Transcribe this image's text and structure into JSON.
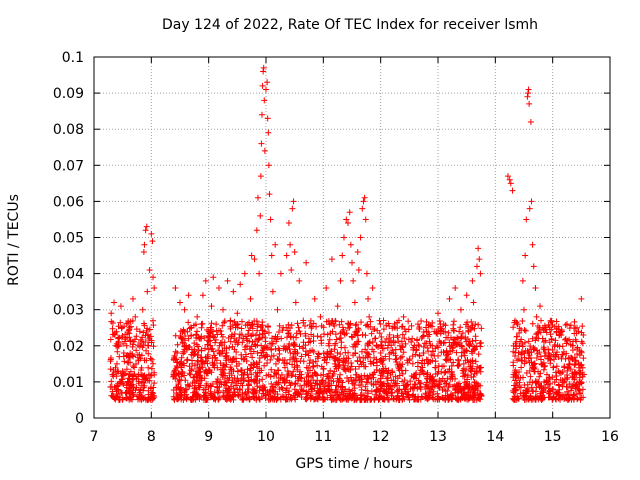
{
  "chart_data": {
    "type": "scatter",
    "title": "Day 124 of 2022, Rate Of TEC Index for receiver lsmh",
    "xlabel": "GPS time / hours",
    "ylabel": "ROTI / TECUs",
    "xlim": [
      7,
      16
    ],
    "ylim": [
      0,
      0.1
    ],
    "xticks": [
      "7",
      "8",
      "9",
      "10",
      "11",
      "12",
      "13",
      "14",
      "15",
      "16"
    ],
    "yticks": [
      "0",
      "0.01",
      "0.02",
      "0.03",
      "0.04",
      "0.05",
      "0.06",
      "0.07",
      "0.08",
      "0.09",
      "0.1"
    ],
    "grid": true,
    "marker": "+",
    "color": "#ff0000",
    "series": [
      {
        "name": "ROTI",
        "points": [
          [
            7.3,
            0.029
          ],
          [
            7.32,
            0.012
          ],
          [
            7.35,
            0.032
          ],
          [
            7.38,
            0.008
          ],
          [
            7.4,
            0.015
          ],
          [
            7.42,
            0.022
          ],
          [
            7.45,
            0.01
          ],
          [
            7.47,
            0.031
          ],
          [
            7.5,
            0.013
          ],
          [
            7.52,
            0.018
          ],
          [
            7.55,
            0.007
          ],
          [
            7.57,
            0.02
          ],
          [
            7.6,
            0.011
          ],
          [
            7.62,
            0.025
          ],
          [
            7.65,
            0.009
          ],
          [
            7.68,
            0.033
          ],
          [
            7.7,
            0.014
          ],
          [
            7.72,
            0.028
          ],
          [
            7.75,
            0.006
          ],
          [
            7.78,
            0.016
          ],
          [
            7.8,
            0.024
          ],
          [
            7.82,
            0.012
          ],
          [
            7.85,
            0.03
          ],
          [
            7.87,
            0.046
          ],
          [
            7.88,
            0.048
          ],
          [
            7.9,
            0.052
          ],
          [
            7.92,
            0.053
          ],
          [
            7.93,
            0.035
          ],
          [
            7.95,
            0.02
          ],
          [
            7.97,
            0.041
          ],
          [
            8.0,
            0.051
          ],
          [
            8.02,
            0.049
          ],
          [
            8.03,
            0.039
          ],
          [
            8.05,
            0.036
          ],
          [
            8.4,
            0.012
          ],
          [
            8.42,
            0.036
          ],
          [
            8.45,
            0.018
          ],
          [
            8.48,
            0.01
          ],
          [
            8.5,
            0.032
          ],
          [
            8.52,
            0.014
          ],
          [
            8.55,
            0.021
          ],
          [
            8.58,
            0.03
          ],
          [
            8.6,
            0.008
          ],
          [
            8.62,
            0.016
          ],
          [
            8.65,
            0.034
          ],
          [
            8.68,
            0.012
          ],
          [
            8.7,
            0.025
          ],
          [
            8.73,
            0.007
          ],
          [
            8.75,
            0.019
          ],
          [
            8.78,
            0.013
          ],
          [
            8.8,
            0.028
          ],
          [
            8.83,
            0.01
          ],
          [
            8.85,
            0.022
          ],
          [
            8.88,
            0.015
          ],
          [
            8.9,
            0.034
          ],
          [
            8.93,
            0.011
          ],
          [
            8.95,
            0.038
          ],
          [
            8.98,
            0.017
          ],
          [
            9.0,
            0.024
          ],
          [
            9.03,
            0.009
          ],
          [
            9.05,
            0.031
          ],
          [
            9.08,
            0.039
          ],
          [
            9.1,
            0.014
          ],
          [
            9.13,
            0.026
          ],
          [
            9.15,
            0.01
          ],
          [
            9.18,
            0.036
          ],
          [
            9.2,
            0.018
          ],
          [
            9.23,
            0.012
          ],
          [
            9.25,
            0.03
          ],
          [
            9.28,
            0.021
          ],
          [
            9.3,
            0.016
          ],
          [
            9.33,
            0.038
          ],
          [
            9.35,
            0.008
          ],
          [
            9.38,
            0.027
          ],
          [
            9.4,
            0.013
          ],
          [
            9.43,
            0.035
          ],
          [
            9.45,
            0.019
          ],
          [
            9.48,
            0.01
          ],
          [
            9.5,
            0.029
          ],
          [
            9.53,
            0.015
          ],
          [
            9.55,
            0.037
          ],
          [
            9.58,
            0.023
          ],
          [
            9.6,
            0.011
          ],
          [
            9.63,
            0.04
          ],
          [
            9.65,
            0.017
          ],
          [
            9.68,
            0.026
          ],
          [
            9.7,
            0.009
          ],
          [
            9.73,
            0.033
          ],
          [
            9.75,
            0.045
          ],
          [
            9.78,
            0.014
          ],
          [
            9.8,
            0.044
          ],
          [
            9.82,
            0.02
          ],
          [
            9.84,
            0.052
          ],
          [
            9.86,
            0.061
          ],
          [
            9.88,
            0.04
          ],
          [
            9.9,
            0.056
          ],
          [
            9.91,
            0.067
          ],
          [
            9.92,
            0.076
          ],
          [
            9.93,
            0.084
          ],
          [
            9.94,
            0.092
          ],
          [
            9.95,
            0.096
          ],
          [
            9.96,
            0.097
          ],
          [
            9.97,
            0.088
          ],
          [
            9.98,
            0.074
          ],
          [
            10.0,
            0.091
          ],
          [
            10.02,
            0.093
          ],
          [
            10.03,
            0.083
          ],
          [
            10.04,
            0.079
          ],
          [
            10.05,
            0.07
          ],
          [
            10.06,
            0.062
          ],
          [
            10.08,
            0.055
          ],
          [
            10.1,
            0.045
          ],
          [
            10.12,
            0.035
          ],
          [
            10.14,
            0.022
          ],
          [
            10.16,
            0.048
          ],
          [
            10.18,
            0.012
          ],
          [
            10.2,
            0.03
          ],
          [
            10.23,
            0.016
          ],
          [
            10.26,
            0.04
          ],
          [
            10.3,
            0.025
          ],
          [
            10.33,
            0.01
          ],
          [
            10.36,
            0.045
          ],
          [
            10.4,
            0.054
          ],
          [
            10.42,
            0.048
          ],
          [
            10.44,
            0.041
          ],
          [
            10.46,
            0.058
          ],
          [
            10.48,
            0.06
          ],
          [
            10.5,
            0.046
          ],
          [
            10.52,
            0.032
          ],
          [
            10.55,
            0.018
          ],
          [
            10.58,
            0.038
          ],
          [
            10.62,
            0.012
          ],
          [
            10.65,
            0.027
          ],
          [
            10.7,
            0.043
          ],
          [
            10.75,
            0.022
          ],
          [
            10.8,
            0.009
          ],
          [
            10.85,
            0.033
          ],
          [
            10.9,
            0.017
          ],
          [
            10.95,
            0.028
          ],
          [
            11.0,
            0.012
          ],
          [
            11.05,
            0.036
          ],
          [
            11.1,
            0.02
          ],
          [
            11.15,
            0.044
          ],
          [
            11.2,
            0.015
          ],
          [
            11.25,
            0.031
          ],
          [
            11.3,
            0.038
          ],
          [
            11.33,
            0.045
          ],
          [
            11.36,
            0.05
          ],
          [
            11.4,
            0.055
          ],
          [
            11.43,
            0.054
          ],
          [
            11.46,
            0.057
          ],
          [
            11.48,
            0.048
          ],
          [
            11.5,
            0.043
          ],
          [
            11.52,
            0.038
          ],
          [
            11.55,
            0.032
          ],
          [
            11.58,
            0.024
          ],
          [
            11.6,
            0.046
          ],
          [
            11.62,
            0.041
          ],
          [
            11.65,
            0.05
          ],
          [
            11.68,
            0.058
          ],
          [
            11.7,
            0.06
          ],
          [
            11.72,
            0.061
          ],
          [
            11.74,
            0.055
          ],
          [
            11.76,
            0.04
          ],
          [
            11.78,
            0.033
          ],
          [
            11.8,
            0.028
          ],
          [
            11.83,
            0.015
          ],
          [
            11.86,
            0.036
          ],
          [
            11.9,
            0.022
          ],
          [
            11.95,
            0.01
          ],
          [
            12.0,
            0.018
          ],
          [
            12.05,
            0.027
          ],
          [
            12.1,
            0.008
          ],
          [
            12.15,
            0.021
          ],
          [
            12.2,
            0.013
          ],
          [
            12.25,
            0.025
          ],
          [
            12.3,
            0.011
          ],
          [
            12.35,
            0.019
          ],
          [
            12.4,
            0.028
          ],
          [
            12.45,
            0.009
          ],
          [
            12.5,
            0.016
          ],
          [
            12.55,
            0.022
          ],
          [
            12.6,
            0.012
          ],
          [
            12.65,
            0.026
          ],
          [
            12.7,
            0.008
          ],
          [
            12.75,
            0.018
          ],
          [
            12.8,
            0.024
          ],
          [
            12.85,
            0.011
          ],
          [
            12.9,
            0.02
          ],
          [
            12.95,
            0.014
          ],
          [
            13.0,
            0.029
          ],
          [
            13.05,
            0.01
          ],
          [
            13.1,
            0.026
          ],
          [
            13.15,
            0.018
          ],
          [
            13.2,
            0.033
          ],
          [
            13.25,
            0.012
          ],
          [
            13.3,
            0.036
          ],
          [
            13.35,
            0.022
          ],
          [
            13.4,
            0.03
          ],
          [
            13.45,
            0.015
          ],
          [
            13.5,
            0.034
          ],
          [
            13.55,
            0.02
          ],
          [
            13.6,
            0.038
          ],
          [
            13.62,
            0.032
          ],
          [
            13.65,
            0.026
          ],
          [
            13.68,
            0.042
          ],
          [
            13.7,
            0.047
          ],
          [
            13.72,
            0.044
          ],
          [
            13.74,
            0.04
          ],
          [
            13.75,
            0.014
          ],
          [
            14.22,
            0.067
          ],
          [
            14.25,
            0.066
          ],
          [
            14.27,
            0.065
          ],
          [
            14.3,
            0.063
          ],
          [
            14.32,
            0.012
          ],
          [
            14.35,
            0.009
          ],
          [
            14.38,
            0.016
          ],
          [
            14.4,
            0.011
          ],
          [
            14.42,
            0.02
          ],
          [
            14.45,
            0.014
          ],
          [
            14.48,
            0.038
          ],
          [
            14.5,
            0.03
          ],
          [
            14.52,
            0.045
          ],
          [
            14.54,
            0.055
          ],
          [
            14.56,
            0.089
          ],
          [
            14.57,
            0.09
          ],
          [
            14.58,
            0.091
          ],
          [
            14.59,
            0.087
          ],
          [
            14.6,
            0.058
          ],
          [
            14.62,
            0.082
          ],
          [
            14.63,
            0.06
          ],
          [
            14.65,
            0.048
          ],
          [
            14.67,
            0.042
          ],
          [
            14.7,
            0.036
          ],
          [
            14.72,
            0.028
          ],
          [
            14.75,
            0.022
          ],
          [
            14.78,
            0.031
          ],
          [
            14.8,
            0.015
          ],
          [
            14.83,
            0.025
          ],
          [
            14.85,
            0.01
          ],
          [
            14.88,
            0.018
          ],
          [
            14.9,
            0.012
          ],
          [
            14.95,
            0.021
          ],
          [
            15.0,
            0.008
          ],
          [
            15.05,
            0.017
          ],
          [
            15.1,
            0.013
          ],
          [
            15.15,
            0.023
          ],
          [
            15.2,
            0.01
          ],
          [
            15.25,
            0.026
          ],
          [
            15.3,
            0.015
          ],
          [
            15.35,
            0.02
          ],
          [
            15.4,
            0.009
          ],
          [
            15.45,
            0.024
          ],
          [
            15.5,
            0.033
          ],
          [
            15.52,
            0.012
          ]
        ]
      }
    ]
  }
}
